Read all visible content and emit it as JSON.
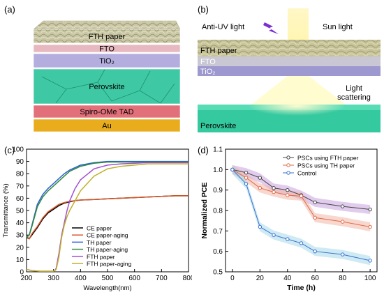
{
  "panel_a": {
    "label": "(a)",
    "layers": [
      {
        "name": "FTH paper",
        "color": "#c9c7a6"
      },
      {
        "name": "FTO",
        "color": "#e7b8bf"
      },
      {
        "name": "TiO₂",
        "color": "#b3aede"
      },
      {
        "name": "Perovskite",
        "color": "#3ec9a4"
      },
      {
        "name": "Spiro-OMe TAD",
        "color": "#e2707a"
      },
      {
        "name": "Au",
        "color": "#e8ac1c"
      }
    ]
  },
  "panel_b": {
    "label": "(b)",
    "anti_uv": "Anti-UV light",
    "sun": "Sun light",
    "layer_paper": "FTH paper",
    "layer_fto": "FTO",
    "layer_tio2": "TiO₂",
    "scattering": "Light\nscattering",
    "perovskite": "Perovskite"
  },
  "chart_data": [
    {
      "panel": "(c)",
      "type": "line",
      "xlabel": "Wavelength(nm)",
      "ylabel": "Transmittance (%)",
      "xlim": [
        200,
        800
      ],
      "ylim": [
        0,
        100
      ],
      "xticks": [
        200,
        300,
        400,
        500,
        600,
        700,
        800
      ],
      "yticks": [
        0,
        10,
        20,
        30,
        40,
        50,
        60,
        70,
        80,
        90,
        100
      ],
      "legend_position": "bottom-right",
      "series": [
        {
          "name": "CE paper",
          "color": "#000000",
          "x": [
            200,
            210,
            220,
            240,
            260,
            280,
            300,
            320,
            340,
            360,
            380,
            400,
            450,
            500,
            550,
            600,
            650,
            700,
            750,
            800
          ],
          "y": [
            28,
            27,
            30,
            36,
            43,
            48,
            51,
            54,
            56,
            57,
            58,
            58.5,
            59,
            59.5,
            60,
            60.5,
            61,
            61.5,
            62,
            62
          ]
        },
        {
          "name": "CE paper-aging",
          "color": "#d8572a",
          "x": [
            200,
            210,
            220,
            240,
            260,
            280,
            300,
            320,
            340,
            360,
            380,
            400,
            450,
            500,
            550,
            600,
            650,
            700,
            750,
            800
          ],
          "y": [
            29,
            27,
            31,
            37,
            44,
            49,
            52,
            55,
            56.5,
            57.5,
            58,
            58.5,
            59,
            59.5,
            60,
            60.5,
            61,
            61.5,
            62,
            62
          ]
        },
        {
          "name": "TH paper",
          "color": "#2b5fd9",
          "x": [
            200,
            210,
            220,
            240,
            260,
            280,
            300,
            320,
            340,
            360,
            380,
            400,
            450,
            500,
            550,
            600,
            650,
            700,
            750,
            800
          ],
          "y": [
            29,
            30,
            38,
            55,
            63,
            68,
            72,
            76,
            80,
            83,
            85,
            87,
            89,
            90,
            90,
            90,
            90,
            90,
            90,
            90
          ]
        },
        {
          "name": "TH paper-aging",
          "color": "#2e8b3a",
          "x": [
            200,
            210,
            220,
            240,
            260,
            280,
            300,
            320,
            340,
            360,
            380,
            400,
            450,
            500,
            550,
            600,
            650,
            700,
            750,
            800
          ],
          "y": [
            28,
            30,
            37,
            53,
            61,
            66,
            70,
            74,
            78,
            82,
            84,
            86,
            88.5,
            89.5,
            89.5,
            89.5,
            89.5,
            89.5,
            89.5,
            89.5
          ]
        },
        {
          "name": "FTH paper",
          "color": "#a24fd1",
          "x": [
            200,
            220,
            250,
            280,
            300,
            305,
            310,
            320,
            330,
            340,
            350,
            360,
            380,
            400,
            450,
            500,
            550,
            600,
            650,
            700,
            750,
            800
          ],
          "y": [
            2,
            1,
            0.5,
            0.5,
            0.5,
            1,
            3,
            15,
            30,
            40,
            50,
            58,
            68,
            75,
            84,
            87,
            88,
            88.5,
            89,
            89,
            89,
            89
          ]
        },
        {
          "name": "FTH paper-aging",
          "color": "#bfb12a",
          "x": [
            200,
            220,
            250,
            280,
            300,
            305,
            310,
            320,
            330,
            340,
            350,
            360,
            380,
            400,
            450,
            500,
            550,
            600,
            650,
            700,
            750,
            800
          ],
          "y": [
            2,
            1,
            0.5,
            0.5,
            0.5,
            1,
            2,
            12,
            28,
            38,
            45,
            50,
            58,
            66,
            78,
            84,
            86,
            87,
            88,
            88,
            88,
            88
          ]
        }
      ]
    },
    {
      "panel": "(d)",
      "type": "line",
      "xlabel": "Time (h)",
      "ylabel": "Normalized PCE",
      "xlim": [
        -5,
        105
      ],
      "ylim": [
        0.5,
        1.1
      ],
      "xticks": [
        0,
        20,
        40,
        60,
        80,
        100
      ],
      "yticks": [
        0.5,
        0.6,
        0.7,
        0.8,
        0.9,
        1.0,
        1.1
      ],
      "legend_position": "top-right",
      "series": [
        {
          "name": "PSCs using FTH paper",
          "color": "#444444",
          "band": "#c9a3e0",
          "x": [
            0,
            10,
            20,
            30,
            40,
            50,
            60,
            80,
            100
          ],
          "y": [
            1.0,
            0.985,
            0.96,
            0.91,
            0.9,
            0.875,
            0.84,
            0.82,
            0.805
          ]
        },
        {
          "name": "PSCs using TH paper",
          "color": "#e06a4a",
          "band": "#f0b7a5",
          "x": [
            0,
            10,
            20,
            30,
            40,
            50,
            60,
            80,
            100
          ],
          "y": [
            1.0,
            0.96,
            0.91,
            0.89,
            0.875,
            0.87,
            0.765,
            0.745,
            0.72
          ]
        },
        {
          "name": "Control",
          "color": "#3a6fd0",
          "band": "#a6d8ea",
          "x": [
            0,
            10,
            20,
            30,
            40,
            50,
            60,
            80,
            100
          ],
          "y": [
            1.0,
            0.93,
            0.72,
            0.68,
            0.66,
            0.64,
            0.6,
            0.585,
            0.555
          ]
        }
      ]
    }
  ]
}
